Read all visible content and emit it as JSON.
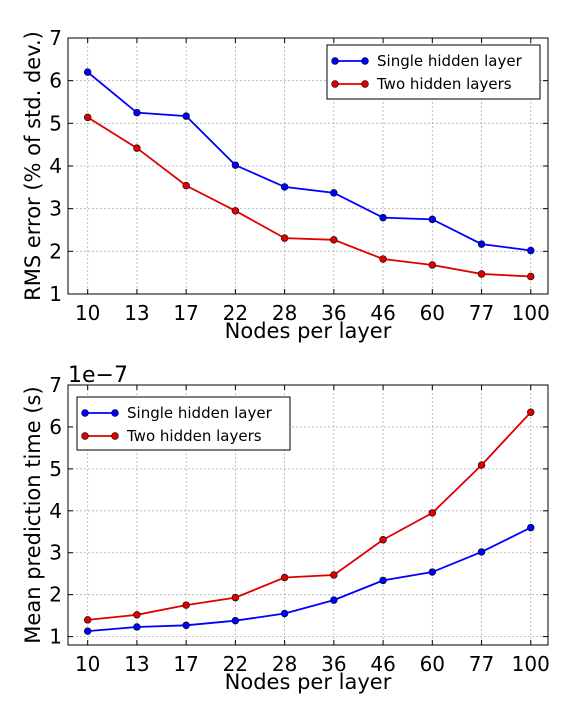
{
  "chart_data": [
    {
      "type": "line",
      "categories": [
        "10",
        "13",
        "17",
        "22",
        "28",
        "36",
        "46",
        "60",
        "77",
        "100"
      ],
      "series": [
        {
          "name": "Single hidden layer",
          "color": "#0000ff",
          "values": [
            6.2,
            5.25,
            5.17,
            4.02,
            3.51,
            3.37,
            2.79,
            2.75,
            2.17,
            2.02
          ]
        },
        {
          "name": "Two hidden layers",
          "color": "#e00000",
          "values": [
            5.14,
            4.42,
            3.54,
            2.95,
            2.31,
            2.27,
            1.82,
            1.68,
            1.47,
            1.41
          ]
        }
      ],
      "xlabel": "Nodes per layer",
      "ylabel": "RMS error (% of std. dev.)",
      "ylim": [
        1,
        7
      ],
      "yticks": [
        "1",
        "2",
        "3",
        "4",
        "5",
        "6",
        "7"
      ],
      "grid": true,
      "legend_position": "top-right"
    },
    {
      "type": "line",
      "categories": [
        "10",
        "13",
        "17",
        "22",
        "28",
        "36",
        "46",
        "60",
        "77",
        "100"
      ],
      "series": [
        {
          "name": "Single hidden layer",
          "color": "#0000ff",
          "values": [
            1.13,
            1.23,
            1.27,
            1.38,
            1.55,
            1.87,
            2.34,
            2.54,
            3.02,
            3.6
          ]
        },
        {
          "name": "Two hidden layers",
          "color": "#e00000",
          "values": [
            1.4,
            1.52,
            1.75,
            1.93,
            2.41,
            2.47,
            3.31,
            3.95,
            5.09,
            6.35
          ]
        }
      ],
      "xlabel": "Nodes per layer",
      "ylabel": "Mean prediction time (s)",
      "y_offset_label": "1e−7",
      "ylim": [
        0.8,
        7
      ],
      "yticks": [
        "1",
        "2",
        "3",
        "4",
        "5",
        "6",
        "7"
      ],
      "grid": true,
      "legend_position": "top-left"
    }
  ]
}
